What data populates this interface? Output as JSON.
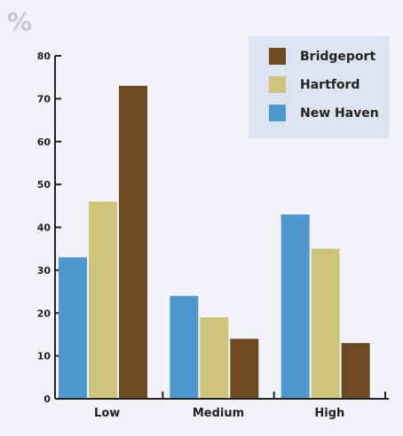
{
  "chart_data": {
    "type": "bar",
    "unit_label": "%",
    "categories": [
      "Low",
      "Medium",
      "High"
    ],
    "series": [
      {
        "name": "New Haven",
        "color": "#4f98cf",
        "values": [
          33,
          24,
          43
        ]
      },
      {
        "name": "Hartford",
        "color": "#cfc47a",
        "values": [
          46,
          19,
          35
        ]
      },
      {
        "name": "Bridgeport",
        "color": "#6e4a22",
        "values": [
          73,
          14,
          13
        ]
      }
    ],
    "legend_order": [
      "Bridgeport",
      "Hartford",
      "New Haven"
    ],
    "legend_position": "top-right",
    "ylim": [
      0,
      80
    ],
    "yticks": [
      0,
      10,
      20,
      30,
      40,
      50,
      60,
      70,
      80
    ],
    "grid": false,
    "xlabel": "",
    "ylabel": ""
  },
  "colors": {
    "background": "#f1f3f8",
    "legend_background": "#dde4f1",
    "axis": "#222222"
  }
}
